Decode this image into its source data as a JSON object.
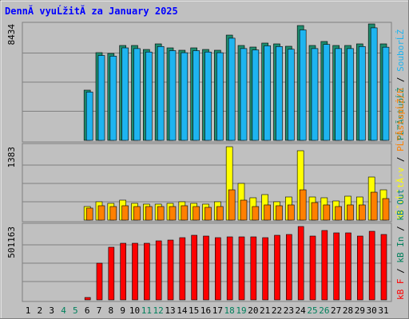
{
  "title": "DennĂ­ vyuĹžitĂ­ za January 2025",
  "categories": [
    "1",
    "2",
    "3",
    "4",
    "5",
    "6",
    "7",
    "8",
    "9",
    "10",
    "11",
    "12",
    "13",
    "14",
    "15",
    "16",
    "17",
    "18",
    "19",
    "20",
    "21",
    "22",
    "23",
    "24",
    "25",
    "26",
    "27",
    "28",
    "29",
    "30",
    "31"
  ],
  "category_colors": [
    "#000000",
    "#000000",
    "#000000",
    "#00805c",
    "#00805c",
    "#000000",
    "#000000",
    "#000000",
    "#000000",
    "#000000",
    "#00805c",
    "#00805c",
    "#000000",
    "#000000",
    "#000000",
    "#000000",
    "#000000",
    "#00805c",
    "#00805c",
    "#000000",
    "#000000",
    "#000000",
    "#000000",
    "#000000",
    "#00805c",
    "#00805c",
    "#000000",
    "#000000",
    "#000000",
    "#000000",
    "#000000"
  ],
  "legend_separator": " / ",
  "chart_data": [
    {
      "type": "bar",
      "ylim": [
        0,
        8434
      ],
      "yticks": [
        8434
      ],
      "grid": true,
      "series": [
        {
          "name": "PĹ™Ă­stupĹŻ",
          "color": "#1e8c6e",
          "values": [
            0,
            0,
            0,
            0,
            0,
            3639,
            6355,
            6297,
            6874,
            6874,
            6585,
            6990,
            6701,
            6528,
            6701,
            6585,
            6528,
            7625,
            6874,
            6759,
            7048,
            6990,
            6817,
            8318,
            6874,
            7163,
            6874,
            6874,
            6990,
            8434,
            6990
          ]
        },
        {
          "name": "SouborĹŻ",
          "color": "#1eb4f0",
          "values": [
            0,
            0,
            0,
            0,
            0,
            3500,
            6150,
            6100,
            6700,
            6650,
            6400,
            6800,
            6500,
            6350,
            6500,
            6400,
            6350,
            7400,
            6650,
            6550,
            6850,
            6800,
            6600,
            8000,
            6650,
            6950,
            6650,
            6650,
            6800,
            8150,
            6750
          ]
        }
      ]
    },
    {
      "type": "bar",
      "ylim": [
        0,
        1383
      ],
      "yticks": [
        1383
      ],
      "grid": true,
      "series": [
        {
          "name": "NĂˇvĹˇtÄ›v",
          "color": "#ffff00",
          "values": [
            0,
            0,
            0,
            0,
            0,
            256,
            346,
            316,
            376,
            316,
            301,
            301,
            316,
            346,
            316,
            301,
            346,
            1383,
            692,
            421,
            481,
            346,
            436,
            1308,
            436,
            421,
            361,
            451,
            436,
            812,
            571
          ]
        },
        {
          "name": "PĹ™Ă­stupĹŻ/h",
          "color": "#ff8000",
          "values": [
            0,
            0,
            0,
            0,
            0,
            226,
            271,
            256,
            271,
            256,
            256,
            256,
            256,
            271,
            256,
            241,
            256,
            571,
            376,
            256,
            286,
            271,
            286,
            571,
            331,
            286,
            256,
            286,
            286,
            526,
            406
          ]
        }
      ]
    },
    {
      "type": "bar",
      "ylim": [
        0,
        501163
      ],
      "yticks": [
        501163
      ],
      "grid": true,
      "series": [
        {
          "name": "kB F",
          "color": "#ff0000",
          "values": [
            0,
            0,
            0,
            0,
            0,
            16343,
            250582,
            359530,
            386767,
            386767,
            386767,
            403110,
            408557,
            424900,
            441242,
            435795,
            424900,
            430348,
            430348,
            430348,
            424900,
            441242,
            446690,
            501163,
            435795,
            473926,
            457584,
            457584,
            435795,
            468479,
            446690
          ]
        }
      ],
      "legend_extra": [
        {
          "name": "kB In",
          "color": "#00805c"
        },
        {
          "name": "kB Out",
          "color": "#008080"
        }
      ]
    }
  ]
}
